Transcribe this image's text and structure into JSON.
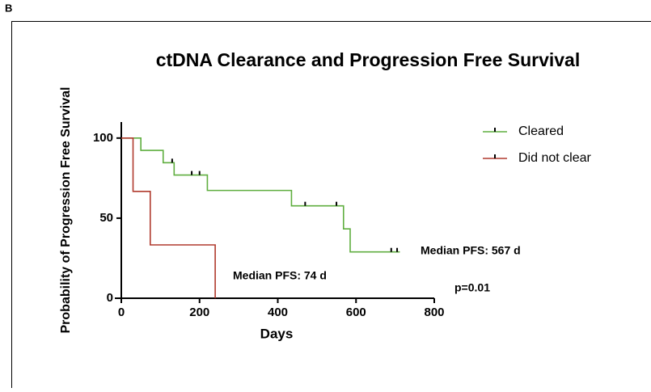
{
  "panel_label": "B",
  "chart_data": {
    "type": "step",
    "title": "ctDNA Clearance and Progression Free Survival",
    "xlabel": "Days",
    "ylabel": "Probability of Progression Free Survival",
    "xlim": [
      0,
      800
    ],
    "xticks": [
      0,
      200,
      400,
      600,
      800
    ],
    "ylim": [
      0,
      110
    ],
    "yticks": [
      0,
      50,
      100
    ],
    "series": [
      {
        "name": "Cleared",
        "color": "#5fae3f",
        "x": [
          0,
          50,
          107,
          135,
          220,
          435,
          568,
          585,
          712
        ],
        "values": [
          100,
          92.3,
          84.6,
          76.9,
          67.3,
          57.7,
          43.3,
          28.9,
          28.9
        ],
        "censor_x": [
          130,
          180,
          200,
          470,
          550,
          690,
          705
        ],
        "censor_values": [
          84.6,
          76.9,
          76.9,
          57.7,
          57.7,
          28.9,
          28.9
        ]
      },
      {
        "name": "Did not clear",
        "color": "#b03a2e",
        "x": [
          0,
          30,
          74,
          240
        ],
        "values": [
          100,
          66.7,
          33.3,
          0
        ],
        "censor_x": [],
        "censor_values": []
      }
    ],
    "annotations": [
      "Median PFS: 567 d",
      "Median PFS: 74 d",
      "p=0.01"
    ]
  }
}
